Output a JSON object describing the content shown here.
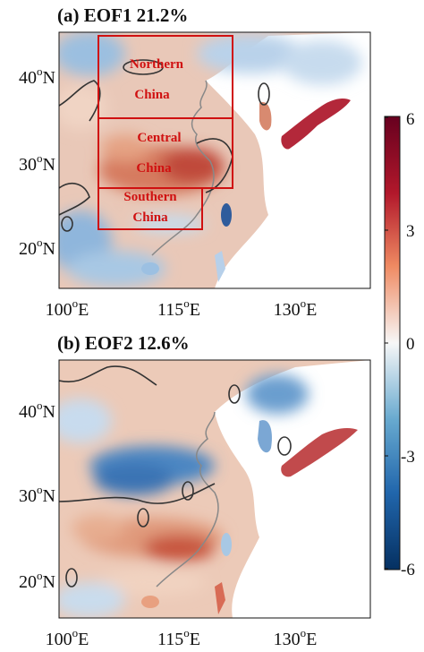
{
  "panels": [
    {
      "title": "(a) EOF1 21.2%",
      "lat_labels": [
        {
          "deg": "40",
          "sfx": "N"
        },
        {
          "deg": "30",
          "sfx": "N"
        },
        {
          "deg": "20",
          "sfx": "N"
        }
      ],
      "lon_labels": [
        {
          "deg": "100",
          "sfx": "E"
        },
        {
          "deg": "115",
          "sfx": "E"
        },
        {
          "deg": "130",
          "sfx": "E"
        }
      ],
      "regions": [
        {
          "name1": "Northern",
          "name2": "China"
        },
        {
          "name1": "Central",
          "name2": "China"
        },
        {
          "name1": "Southern",
          "name2": "China"
        }
      ]
    },
    {
      "title": "(b) EOF2 12.6%",
      "lat_labels": [
        {
          "deg": "40",
          "sfx": "N"
        },
        {
          "deg": "30",
          "sfx": "N"
        },
        {
          "deg": "20",
          "sfx": "N"
        }
      ],
      "lon_labels": [
        {
          "deg": "100",
          "sfx": "E"
        },
        {
          "deg": "115",
          "sfx": "E"
        },
        {
          "deg": "130",
          "sfx": "E"
        }
      ]
    }
  ],
  "colorbar": {
    "ticks": [
      "6",
      "3",
      "0",
      "-3",
      "-6"
    ],
    "range": [
      -6,
      6
    ],
    "colors": {
      "max": "#67001f",
      "high": "#b2182b",
      "mid_high": "#ef8a62",
      "zero": "#f7f7f7",
      "mid_low": "#67a9cf",
      "low": "#2166ac",
      "min": "#053061"
    }
  },
  "colors": {
    "region_box": "#d01010",
    "coast": "#888888",
    "contour": "#333333",
    "land_bg_a": "#e7c8b8",
    "land_bg_b": "#eccab8"
  }
}
